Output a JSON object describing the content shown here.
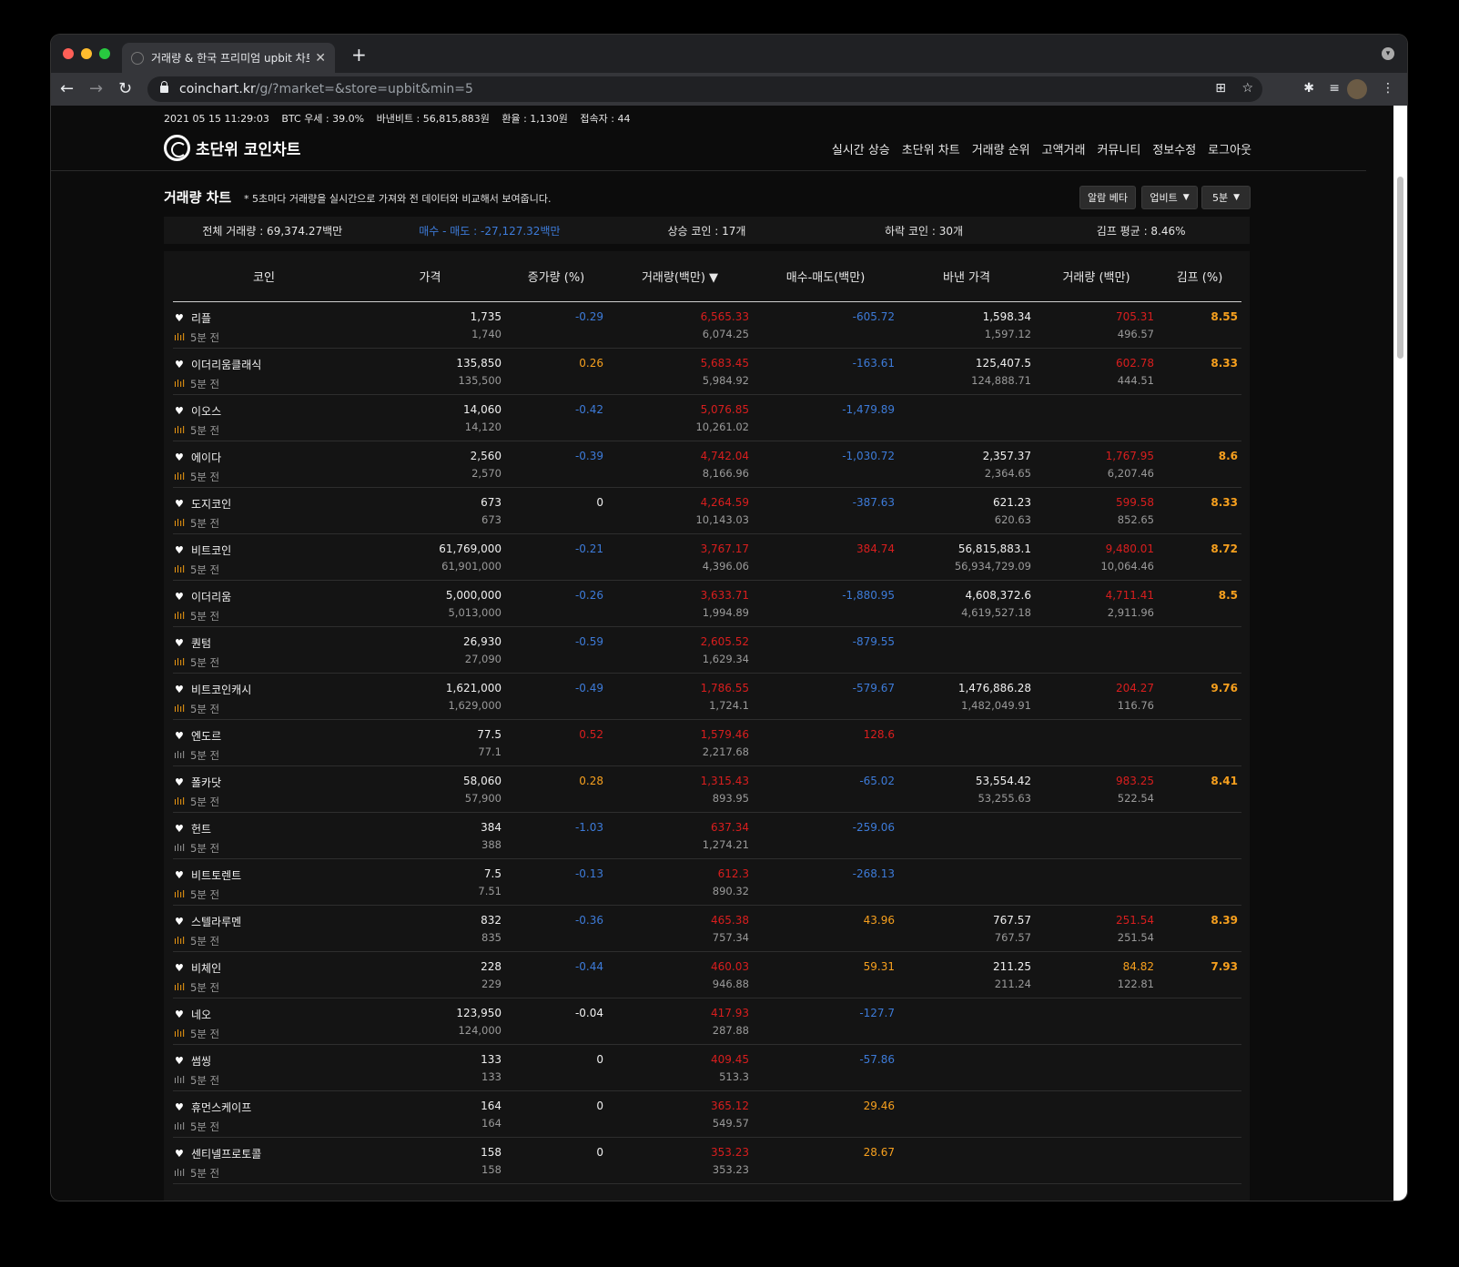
{
  "browser": {
    "tab_title": "거래량 & 한국 프리미엄 upbit 차트",
    "new_tab": "+",
    "close": "✕",
    "url_host": "coinchart.kr",
    "url_path": "/g/?market=&store=upbit&min=5"
  },
  "topinfo": {
    "datetime": "2021 05 15 11:29:03",
    "btc_dominance": "BTC 우세 : 39.0%",
    "binance_btc": "바낸비트 : 56,815,883원",
    "exchange_rate": "환율 : 1,130원",
    "visitors": "접속자 : 44"
  },
  "logo": {
    "text": "초단위 코인차트"
  },
  "topnav": [
    "실시간 상승",
    "초단위 차트",
    "거래량 순위",
    "고액거래",
    "커뮤니티",
    "정보수정",
    "로그아웃"
  ],
  "section": {
    "title": "거래량 차트",
    "desc": "* 5초마다 거래량을 실시간으로 가져와 전 데이터와 비교해서 보여줍니다.",
    "alarm_btn": "알람 베타",
    "store_select": "업비트",
    "min_select": "5분"
  },
  "summary": {
    "total": "전체 거래량 : 69,374.27백만",
    "bid_ask": "매수 - 매도 : -27,127.32백만",
    "rising": "상승 코인 : 17개",
    "falling": "하락 코인 : 30개",
    "kimp_avg": "김프 평균 : 8.46%"
  },
  "table": {
    "headers": [
      "코인",
      "가격",
      "증가량 (%)",
      "거래량(백만) ▼",
      "매수-매도(백만)",
      "바낸 가격",
      "거래량 (백만)",
      "김프 (%)"
    ],
    "sub_label": "5분 전",
    "rows": [
      {
        "name": "리플",
        "chart": "on",
        "price": "1,735",
        "price_prev": "1,740",
        "chg": "-0.29",
        "chg_c": "blue",
        "vol": "6,565.33",
        "vol_prev": "6,074.25",
        "net": "-605.72",
        "net_c": "blue",
        "bn": "1,598.34",
        "bn_prev": "1,597.12",
        "bnv": "705.31",
        "bnv_c": "red",
        "bnv_prev": "496.57",
        "kimp": "8.55"
      },
      {
        "name": "이더리움클래식",
        "chart": "on",
        "price": "135,850",
        "price_prev": "135,500",
        "chg": "0.26",
        "chg_c": "orange",
        "vol": "5,683.45",
        "vol_prev": "5,984.92",
        "net": "-163.61",
        "net_c": "blue",
        "bn": "125,407.5",
        "bn_prev": "124,888.71",
        "bnv": "602.78",
        "bnv_c": "red",
        "bnv_prev": "444.51",
        "kimp": "8.33"
      },
      {
        "name": "이오스",
        "chart": "on",
        "price": "14,060",
        "price_prev": "14,120",
        "chg": "-0.42",
        "chg_c": "blue",
        "vol": "5,076.85",
        "vol_prev": "10,261.02",
        "net": "-1,479.89",
        "net_c": "blue",
        "bn": "",
        "bn_prev": "",
        "bnv": "",
        "bnv_c": "red",
        "bnv_prev": "",
        "kimp": ""
      },
      {
        "name": "에이다",
        "chart": "on",
        "price": "2,560",
        "price_prev": "2,570",
        "chg": "-0.39",
        "chg_c": "blue",
        "vol": "4,742.04",
        "vol_prev": "8,166.96",
        "net": "-1,030.72",
        "net_c": "blue",
        "bn": "2,357.37",
        "bn_prev": "2,364.65",
        "bnv": "1,767.95",
        "bnv_c": "red",
        "bnv_prev": "6,207.46",
        "kimp": "8.6"
      },
      {
        "name": "도지코인",
        "chart": "on",
        "price": "673",
        "price_prev": "673",
        "chg": "0",
        "chg_c": "white",
        "vol": "4,264.59",
        "vol_prev": "10,143.03",
        "net": "-387.63",
        "net_c": "blue",
        "bn": "621.23",
        "bn_prev": "620.63",
        "bnv": "599.58",
        "bnv_c": "red",
        "bnv_prev": "852.65",
        "kimp": "8.33"
      },
      {
        "name": "비트코인",
        "chart": "on",
        "price": "61,769,000",
        "price_prev": "61,901,000",
        "chg": "-0.21",
        "chg_c": "blue",
        "vol": "3,767.17",
        "vol_prev": "4,396.06",
        "net": "384.74",
        "net_c": "red",
        "bn": "56,815,883.1",
        "bn_prev": "56,934,729.09",
        "bnv": "9,480.01",
        "bnv_c": "red",
        "bnv_prev": "10,064.46",
        "kimp": "8.72"
      },
      {
        "name": "이더리움",
        "chart": "on",
        "price": "5,000,000",
        "price_prev": "5,013,000",
        "chg": "-0.26",
        "chg_c": "blue",
        "vol": "3,633.71",
        "vol_prev": "1,994.89",
        "net": "-1,880.95",
        "net_c": "blue",
        "bn": "4,608,372.6",
        "bn_prev": "4,619,527.18",
        "bnv": "4,711.41",
        "bnv_c": "red",
        "bnv_prev": "2,911.96",
        "kimp": "8.5"
      },
      {
        "name": "퀀텀",
        "chart": "on",
        "price": "26,930",
        "price_prev": "27,090",
        "chg": "-0.59",
        "chg_c": "blue",
        "vol": "2,605.52",
        "vol_prev": "1,629.34",
        "net": "-879.55",
        "net_c": "blue",
        "bn": "",
        "bn_prev": "",
        "bnv": "",
        "bnv_c": "red",
        "bnv_prev": "",
        "kimp": ""
      },
      {
        "name": "비트코인캐시",
        "chart": "on",
        "price": "1,621,000",
        "price_prev": "1,629,000",
        "chg": "-0.49",
        "chg_c": "blue",
        "vol": "1,786.55",
        "vol_prev": "1,724.1",
        "net": "-579.67",
        "net_c": "blue",
        "bn": "1,476,886.28",
        "bn_prev": "1,482,049.91",
        "bnv": "204.27",
        "bnv_c": "red",
        "bnv_prev": "116.76",
        "kimp": "9.76"
      },
      {
        "name": "엔도르",
        "chart": "off",
        "price": "77.5",
        "price_prev": "77.1",
        "chg": "0.52",
        "chg_c": "red",
        "vol": "1,579.46",
        "vol_prev": "2,217.68",
        "net": "128.6",
        "net_c": "red",
        "bn": "",
        "bn_prev": "",
        "bnv": "",
        "bnv_c": "red",
        "bnv_prev": "",
        "kimp": ""
      },
      {
        "name": "폴카닷",
        "chart": "on",
        "price": "58,060",
        "price_prev": "57,900",
        "chg": "0.28",
        "chg_c": "orange",
        "vol": "1,315.43",
        "vol_prev": "893.95",
        "net": "-65.02",
        "net_c": "blue",
        "bn": "53,554.42",
        "bn_prev": "53,255.63",
        "bnv": "983.25",
        "bnv_c": "red",
        "bnv_prev": "522.54",
        "kimp": "8.41"
      },
      {
        "name": "헌트",
        "chart": "off",
        "price": "384",
        "price_prev": "388",
        "chg": "-1.03",
        "chg_c": "blue",
        "vol": "637.34",
        "vol_prev": "1,274.21",
        "net": "-259.06",
        "net_c": "blue",
        "bn": "",
        "bn_prev": "",
        "bnv": "",
        "bnv_c": "red",
        "bnv_prev": "",
        "kimp": ""
      },
      {
        "name": "비트토렌트",
        "chart": "on",
        "price": "7.5",
        "price_prev": "7.51",
        "chg": "-0.13",
        "chg_c": "blue",
        "vol": "612.3",
        "vol_prev": "890.32",
        "net": "-268.13",
        "net_c": "blue",
        "bn": "",
        "bn_prev": "",
        "bnv": "",
        "bnv_c": "red",
        "bnv_prev": "",
        "kimp": ""
      },
      {
        "name": "스텔라루멘",
        "chart": "on",
        "price": "832",
        "price_prev": "835",
        "chg": "-0.36",
        "chg_c": "blue",
        "vol": "465.38",
        "vol_prev": "757.34",
        "net": "43.96",
        "net_c": "orange",
        "bn": "767.57",
        "bn_prev": "767.57",
        "bnv": "251.54",
        "bnv_c": "red",
        "bnv_prev": "251.54",
        "kimp": "8.39"
      },
      {
        "name": "비체인",
        "chart": "on",
        "price": "228",
        "price_prev": "229",
        "chg": "-0.44",
        "chg_c": "blue",
        "vol": "460.03",
        "vol_prev": "946.88",
        "net": "59.31",
        "net_c": "orange",
        "bn": "211.25",
        "bn_prev": "211.24",
        "bnv": "84.82",
        "bnv_c": "orange",
        "bnv_prev": "122.81",
        "kimp": "7.93"
      },
      {
        "name": "네오",
        "chart": "on",
        "price": "123,950",
        "price_prev": "124,000",
        "chg": "-0.04",
        "chg_c": "white",
        "vol": "417.93",
        "vol_prev": "287.88",
        "net": "-127.7",
        "net_c": "blue",
        "bn": "",
        "bn_prev": "",
        "bnv": "",
        "bnv_c": "red",
        "bnv_prev": "",
        "kimp": ""
      },
      {
        "name": "썸씽",
        "chart": "off",
        "price": "133",
        "price_prev": "133",
        "chg": "0",
        "chg_c": "white",
        "vol": "409.45",
        "vol_prev": "513.3",
        "net": "-57.86",
        "net_c": "blue",
        "bn": "",
        "bn_prev": "",
        "bnv": "",
        "bnv_c": "red",
        "bnv_prev": "",
        "kimp": ""
      },
      {
        "name": "휴먼스케이프",
        "chart": "off",
        "price": "164",
        "price_prev": "164",
        "chg": "0",
        "chg_c": "white",
        "vol": "365.12",
        "vol_prev": "549.57",
        "net": "29.46",
        "net_c": "orange",
        "bn": "",
        "bn_prev": "",
        "bnv": "",
        "bnv_c": "red",
        "bnv_prev": "",
        "kimp": ""
      },
      {
        "name": "센티넬프로토콜",
        "chart": "off",
        "price": "158",
        "price_prev": "158",
        "chg": "0",
        "chg_c": "white",
        "vol": "353.23",
        "vol_prev": "353.23",
        "net": "28.67",
        "net_c": "orange",
        "bn": "",
        "bn_prev": "",
        "bnv": "",
        "bnv_c": "red",
        "bnv_prev": "",
        "kimp": ""
      }
    ]
  }
}
